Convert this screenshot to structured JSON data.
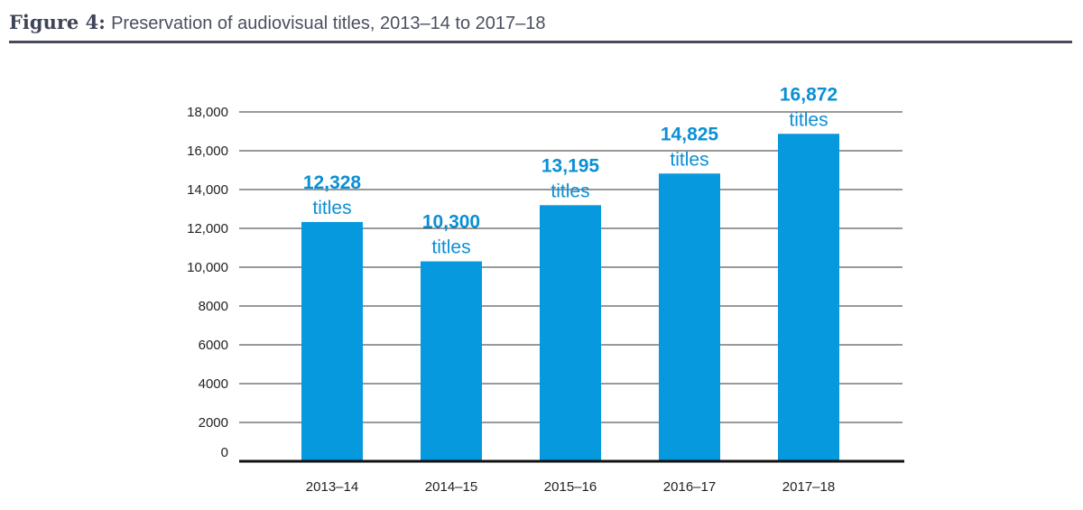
{
  "figure": {
    "lead": "Figure 4:",
    "title": "Preservation of audiovisual titles, 2013–14 to 2017–18"
  },
  "colors": {
    "bar": "#0799dd",
    "label": "#0b8fd6",
    "grid": "#333333",
    "axis": "#111111",
    "rule": "#474b5c"
  },
  "chart_data": {
    "type": "bar",
    "categories": [
      "2013–14",
      "2014–15",
      "2015–16",
      "2016–17",
      "2017–18"
    ],
    "values": [
      12328,
      10300,
      13195,
      14825,
      16872
    ],
    "value_labels": [
      "12,328",
      "10,300",
      "13,195",
      "14,825",
      "16,872"
    ],
    "unit_label": "titles",
    "ylim": [
      0,
      18000
    ],
    "yticks": [
      0,
      2000,
      4000,
      6000,
      8000,
      10000,
      12000,
      14000,
      16000,
      18000
    ],
    "ytick_labels": [
      "0",
      "2000",
      "4000",
      "6000",
      "8000",
      "10,000",
      "12,000",
      "14,000",
      "16,000",
      "18,000"
    ],
    "grid": true,
    "legend": "none"
  }
}
